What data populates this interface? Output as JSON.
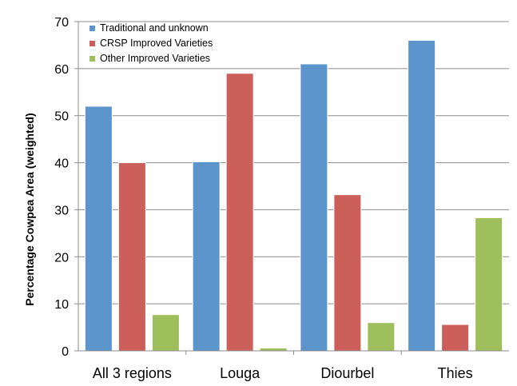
{
  "chart_data": {
    "type": "bar",
    "title": "",
    "xlabel": "",
    "ylabel": "Percentage Cowpea Area (weighted)",
    "ylim": [
      0,
      70
    ],
    "yticks": [
      0,
      10,
      20,
      30,
      40,
      50,
      60,
      70
    ],
    "grid": true,
    "legend_position": "top-left",
    "categories": [
      "All 3 regions",
      "Louga",
      "Diourbel",
      "Thies"
    ],
    "series": [
      {
        "name": "Traditional and unknown",
        "color": "#5b95cb",
        "values": [
          52,
          40.2,
          61,
          66
        ]
      },
      {
        "name": "CRSP Improved Varieties",
        "color": "#cd5f5a",
        "values": [
          40,
          59,
          33.2,
          5.6
        ]
      },
      {
        "name": "Other Improved Varieties",
        "color": "#9ebf5c",
        "values": [
          7.7,
          0.6,
          6,
          28.3
        ]
      }
    ]
  }
}
